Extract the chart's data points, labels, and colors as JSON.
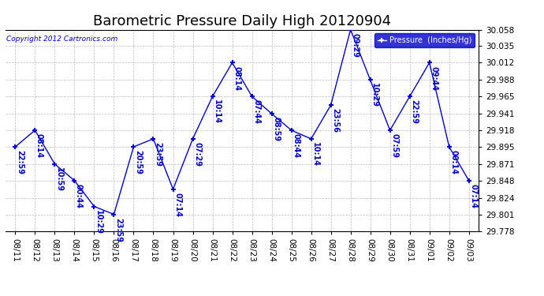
{
  "title": "Barometric Pressure Daily High 20120904",
  "copyright": "Copyright 2012 Cartronics.com",
  "legend_label": "Pressure  (Inches/Hg)",
  "x_labels": [
    "08/11",
    "08/12",
    "08/13",
    "08/14",
    "08/15",
    "08/16",
    "08/17",
    "08/18",
    "08/19",
    "08/20",
    "08/21",
    "08/22",
    "08/23",
    "08/24",
    "08/25",
    "08/26",
    "08/27",
    "08/28",
    "08/29",
    "08/30",
    "08/31",
    "09/01",
    "09/02",
    "09/03"
  ],
  "y_values": [
    29.895,
    29.918,
    29.871,
    29.848,
    29.812,
    29.801,
    29.895,
    29.906,
    29.836,
    29.906,
    29.965,
    30.012,
    29.965,
    29.941,
    29.918,
    29.906,
    29.953,
    30.058,
    29.988,
    29.918,
    29.965,
    30.012,
    29.895,
    29.848
  ],
  "point_labels": [
    "22:59",
    "08:14",
    "10:59",
    "00:44",
    "10:29",
    "23:59",
    "20:59",
    "23:59",
    "07:14",
    "07:29",
    "10:14",
    "08:14",
    "07:44",
    "08:59",
    "08:44",
    "10:14",
    "23:56",
    "09:29",
    "10:29",
    "07:59",
    "22:59",
    "09:44",
    "00:14",
    "07:14"
  ],
  "line_color": "#0000CC",
  "marker_color": "#0000CC",
  "background_color": "#ffffff",
  "grid_color": "#bbbbbb",
  "title_fontsize": 13,
  "label_fontsize": 7,
  "tick_fontsize": 7.5,
  "ylim_min": 29.778,
  "ylim_max": 30.058,
  "yticks": [
    29.778,
    29.801,
    29.824,
    29.848,
    29.871,
    29.895,
    29.918,
    29.941,
    29.965,
    29.988,
    30.012,
    30.035,
    30.058
  ]
}
